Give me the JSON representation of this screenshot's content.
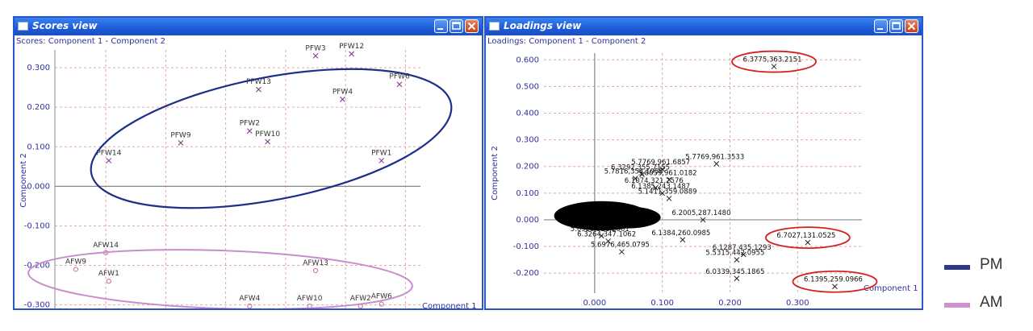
{
  "scores_window": {
    "title": "Scores view",
    "caption": "Scores: Component 1 - Component 2",
    "x_axis_label": "Component 1",
    "y_axis_label": "Component 2"
  },
  "loadings_window": {
    "title": "Loadings view",
    "caption": "Loadings: Component 1 - Component 2",
    "x_axis_label": "Component 1",
    "y_axis_label": "Component 2"
  },
  "legend": [
    {
      "label": "PM",
      "color": "#2b3990"
    },
    {
      "label": "AM",
      "color": "#d18ed1"
    }
  ],
  "colors": {
    "pm_ellipse": "#1c2f8a",
    "am_ellipse": "#c98ccf",
    "highlight_ellipse": "#d42020",
    "grid": "#e3a6a6",
    "axis_line": "#888888",
    "tick_label": "#3030a0"
  },
  "chart_data": [
    {
      "type": "scatter",
      "title": "Scores: Component 1 - Component 2",
      "xlabel": "Component 1",
      "ylabel": "Component 2",
      "xlim": [
        0.163,
        0.285
      ],
      "ylim": [
        -0.315,
        0.345
      ],
      "x_ticks": [
        "0.180",
        "0.200",
        "0.220",
        "0.240",
        "0.260",
        "0.280"
      ],
      "y_ticks": [
        "0.300",
        "0.200",
        "0.100",
        "0.000",
        "-0.100",
        "-0.200",
        "-0.300"
      ],
      "groups": [
        {
          "name": "PM",
          "marker": "x",
          "color": "#7a2f8a",
          "points": [
            {
              "label": "PFW3",
              "x": 0.25,
              "y": 0.33
            },
            {
              "label": "PFW12",
              "x": 0.262,
              "y": 0.335
            },
            {
              "label": "PFW6",
              "x": 0.278,
              "y": 0.258
            },
            {
              "label": "PFW13",
              "x": 0.231,
              "y": 0.245
            },
            {
              "label": "PFW4",
              "x": 0.259,
              "y": 0.22
            },
            {
              "label": "PFW9",
              "x": 0.205,
              "y": 0.11
            },
            {
              "label": "PFW2",
              "x": 0.228,
              "y": 0.14
            },
            {
              "label": "PFW10",
              "x": 0.234,
              "y": 0.113
            },
            {
              "label": "PFW14",
              "x": 0.181,
              "y": 0.065
            },
            {
              "label": "PFW1",
              "x": 0.272,
              "y": 0.065
            }
          ]
        },
        {
          "name": "AM",
          "marker": "o",
          "color": "#c66aa0",
          "points": [
            {
              "label": "AFW14",
              "x": 0.18,
              "y": -0.168
            },
            {
              "label": "AFW9",
              "x": 0.17,
              "y": -0.21
            },
            {
              "label": "AFW1",
              "x": 0.181,
              "y": -0.24
            },
            {
              "label": "AFW13",
              "x": 0.25,
              "y": -0.213
            },
            {
              "label": "AFW4",
              "x": 0.228,
              "y": -0.303
            },
            {
              "label": "AFW10",
              "x": 0.248,
              "y": -0.303
            },
            {
              "label": "AFW2",
              "x": 0.265,
              "y": -0.303
            },
            {
              "label": "AFW6",
              "x": 0.272,
              "y": -0.298
            }
          ]
        }
      ]
    },
    {
      "type": "scatter",
      "title": "Loadings: Component 1 - Component 2",
      "xlabel": "Component 1",
      "ylabel": "Component 2",
      "xlim": [
        -0.075,
        0.395
      ],
      "ylim": [
        -0.275,
        0.625
      ],
      "x_ticks": [
        "0.000",
        "0.100",
        "0.200",
        "0.300"
      ],
      "y_ticks": [
        "0.600",
        "0.500",
        "0.400",
        "0.300",
        "0.200",
        "0.100",
        "0.000",
        "-0.100",
        "-0.200"
      ],
      "labeled_points": [
        {
          "label": "6.3775,363.2151",
          "x": 0.265,
          "y": 0.575
        },
        {
          "label": "5.7769,961.3533",
          "x": 0.18,
          "y": 0.21
        },
        {
          "label": "6.7027,131.0525",
          "x": 0.315,
          "y": -0.085
        },
        {
          "label": "6.1395,259.0966",
          "x": 0.355,
          "y": -0.25
        },
        {
          "label": "6.1287,435.1293",
          "x": 0.22,
          "y": -0.13
        },
        {
          "label": "5.5315,442.0955",
          "x": 0.21,
          "y": -0.15
        },
        {
          "label": "6.0339,345.1865",
          "x": 0.21,
          "y": -0.22
        },
        {
          "label": "5.7769,961.6857",
          "x": 0.1,
          "y": 0.19
        },
        {
          "label": "6.3292,355.7155",
          "x": 0.07,
          "y": 0.17
        },
        {
          "label": "5.7816,354.1058",
          "x": 0.06,
          "y": 0.155
        },
        {
          "label": "5.8059,961.0182",
          "x": 0.11,
          "y": 0.15
        },
        {
          "label": "6.1074,321.2576",
          "x": 0.09,
          "y": 0.12
        },
        {
          "label": "6.1385,243.1487",
          "x": 0.1,
          "y": 0.1
        },
        {
          "label": "5.1411,359.0889",
          "x": 0.11,
          "y": 0.08
        },
        {
          "label": "6.2005,287.1480",
          "x": 0.16,
          "y": 0.0
        },
        {
          "label": "6.1384,260.0985",
          "x": 0.13,
          "y": -0.075
        },
        {
          "label": "5.6976,465.0795",
          "x": 0.04,
          "y": -0.12
        },
        {
          "label": "6.3264,347.1062",
          "x": 0.02,
          "y": -0.08
        },
        {
          "label": "5.0928,521.2061",
          "x": 0.01,
          "y": -0.06
        }
      ],
      "cluster_region": {
        "x": [
          -0.06,
          0.08
        ],
        "y": [
          -0.04,
          0.07
        ]
      }
    }
  ]
}
